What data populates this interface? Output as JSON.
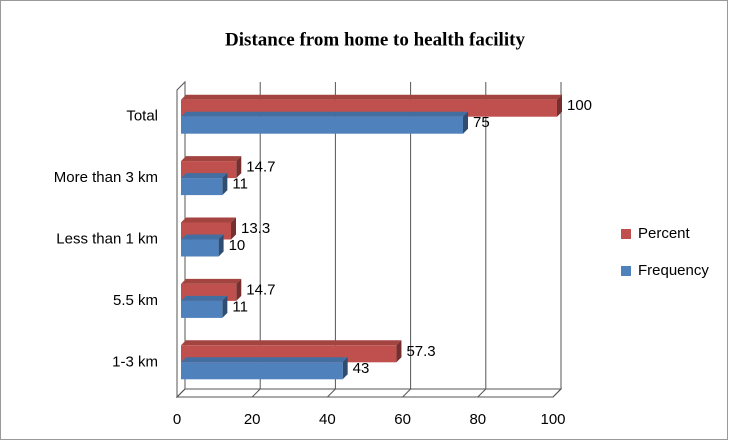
{
  "chart_data": {
    "type": "bar",
    "orientation": "horizontal",
    "title": "Distance from home to health facility",
    "categories": [
      "Total",
      "More than 3 km",
      "Less than 1 km",
      "5.5 km",
      "1-3 km"
    ],
    "series": [
      {
        "name": "Percent",
        "color": "#c0504d",
        "values": [
          100,
          14.7,
          13.3,
          14.7,
          57.3
        ]
      },
      {
        "name": "Frequency",
        "color": "#4f81bd",
        "values": [
          75,
          11,
          10,
          11,
          43
        ]
      }
    ],
    "xlim": [
      0,
      100
    ],
    "xticks": [
      0,
      20,
      40,
      60,
      80,
      100
    ],
    "grid": true,
    "legend": "right"
  }
}
